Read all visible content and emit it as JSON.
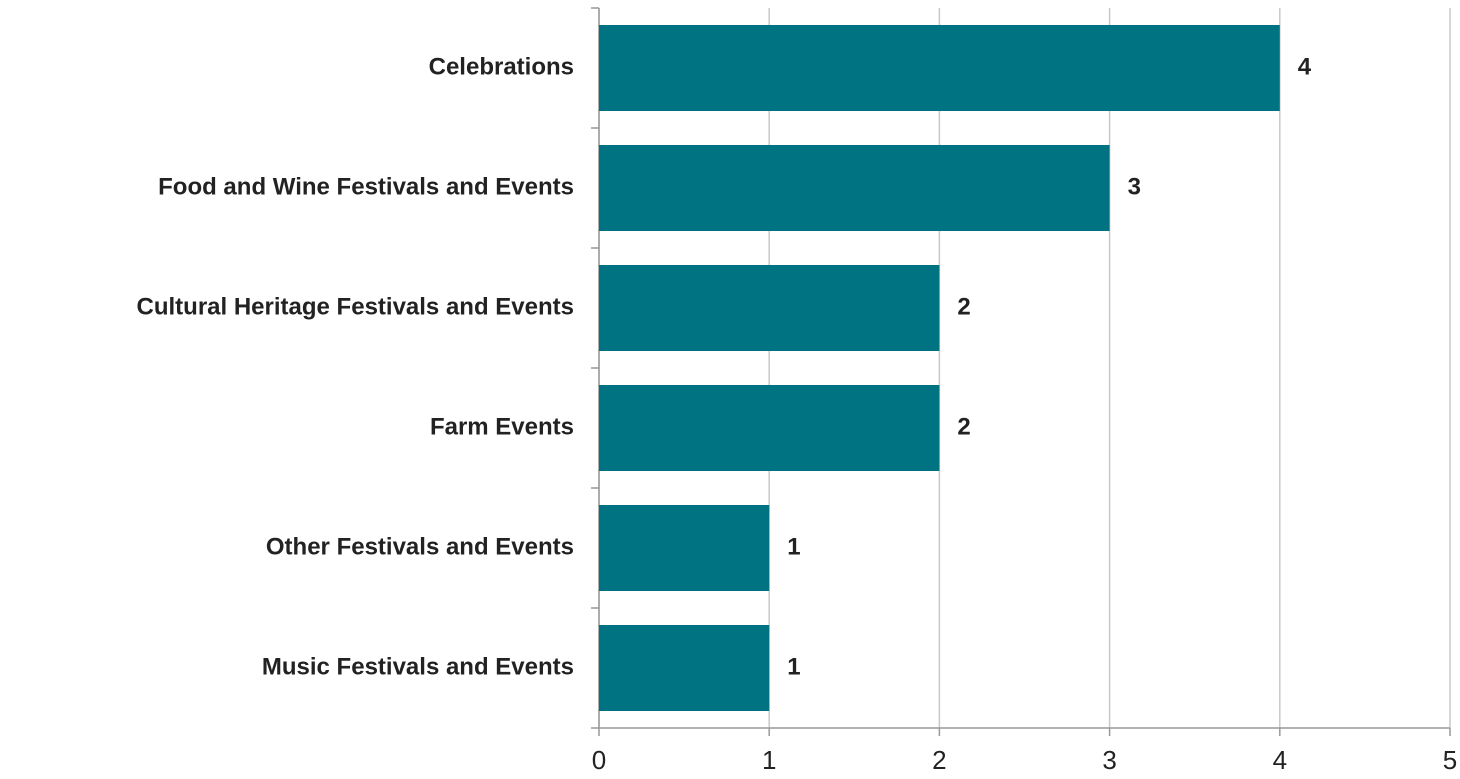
{
  "chart_data": {
    "type": "bar",
    "orientation": "horizontal",
    "categories": [
      "Celebrations",
      "Food and Wine Festivals and Events",
      "Cultural Heritage Festivals and Events",
      "Farm Events",
      "Other Festivals and Events",
      "Music Festivals and Events"
    ],
    "values": [
      4,
      3,
      2,
      2,
      1,
      1
    ],
    "color": "#007383",
    "xlim": [
      0,
      5
    ],
    "xticks": [
      0,
      1,
      2,
      3,
      4,
      5
    ],
    "grid": true
  }
}
